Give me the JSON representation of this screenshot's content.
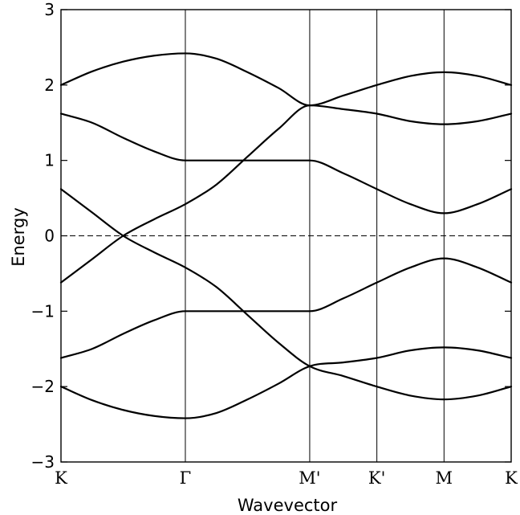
{
  "chart_data": {
    "type": "line",
    "title": "",
    "xlabel": "Wavevector",
    "ylabel": "Energy",
    "ylim": [
      -3,
      3
    ],
    "yticks": [
      3,
      2,
      1,
      0,
      -1,
      -2,
      -3
    ],
    "ytick_labels": [
      "3",
      "2",
      "1",
      "0",
      "−1",
      "−2",
      "−3"
    ],
    "kpoints": [
      {
        "label": "K",
        "x": 0
      },
      {
        "label": "Γ",
        "x": 1
      },
      {
        "label": "M'",
        "x": 2
      },
      {
        "label": "K'",
        "x": 2.54
      },
      {
        "label": "M",
        "x": 3.08
      },
      {
        "label": "K",
        "x": 3.62
      }
    ],
    "xlim": [
      0,
      3.62
    ],
    "zero_line": {
      "y": 0,
      "style": "dashed"
    },
    "grid": false,
    "series": [
      {
        "x": [
          0,
          0.25,
          0.5,
          0.75,
          1,
          1.25,
          1.5,
          1.75,
          2,
          2.27,
          2.54,
          2.81,
          3.08,
          3.35,
          3.62
        ],
        "values": [
          2.0,
          2.18,
          2.31,
          2.39,
          2.42,
          2.35,
          2.17,
          1.96,
          1.73,
          1.86,
          2.0,
          2.12,
          2.17,
          2.12,
          2.0
        ]
      },
      {
        "x": [
          0,
          0.25,
          0.5,
          0.75,
          1,
          1.25,
          1.5,
          1.75,
          2,
          2.27,
          2.54,
          2.81,
          3.08,
          3.35,
          3.62
        ],
        "values": [
          1.62,
          1.5,
          1.3,
          1.12,
          1.0,
          1.0,
          1.0,
          1.0,
          1.0,
          0.83,
          0.62,
          0.42,
          0.3,
          0.42,
          0.62
        ]
      },
      {
        "x": [
          0,
          0.25,
          0.5,
          0.75,
          1,
          1.25,
          1.5,
          1.75,
          2,
          2.27,
          2.54,
          2.81,
          3.08,
          3.35,
          3.62
        ],
        "values": [
          0.62,
          0.31,
          0.0,
          -0.22,
          -0.42,
          -0.68,
          -1.05,
          -1.42,
          -1.73,
          -1.86,
          -2.0,
          -2.12,
          -2.17,
          -2.12,
          -2.0
        ]
      },
      {
        "x": [
          0,
          0.25,
          0.5,
          0.75,
          1,
          1.25,
          1.5,
          1.75,
          2,
          2.27,
          2.54,
          2.81,
          3.08,
          3.35,
          3.62
        ],
        "values": [
          -0.62,
          -0.31,
          0.0,
          0.22,
          0.42,
          0.68,
          1.05,
          1.42,
          1.73,
          1.68,
          1.62,
          1.52,
          1.48,
          1.52,
          1.62
        ]
      },
      {
        "x": [
          0,
          0.25,
          0.5,
          0.75,
          1,
          1.25,
          1.5,
          1.75,
          2,
          2.27,
          2.54,
          2.81,
          3.08,
          3.35,
          3.62
        ],
        "values": [
          -1.62,
          -1.5,
          -1.3,
          -1.12,
          -1.0,
          -1.0,
          -1.0,
          -1.0,
          -1.0,
          -0.83,
          -0.62,
          -0.42,
          -0.3,
          -0.42,
          -0.62
        ]
      },
      {
        "x": [
          0,
          0.25,
          0.5,
          0.75,
          1,
          1.25,
          1.5,
          1.75,
          2,
          2.27,
          2.54,
          2.81,
          3.08,
          3.35,
          3.62
        ],
        "values": [
          -2.0,
          -2.18,
          -2.31,
          -2.39,
          -2.42,
          -2.35,
          -2.17,
          -1.96,
          -1.73,
          -1.68,
          -1.62,
          -1.52,
          -1.48,
          -1.52,
          -1.62
        ]
      }
    ]
  }
}
